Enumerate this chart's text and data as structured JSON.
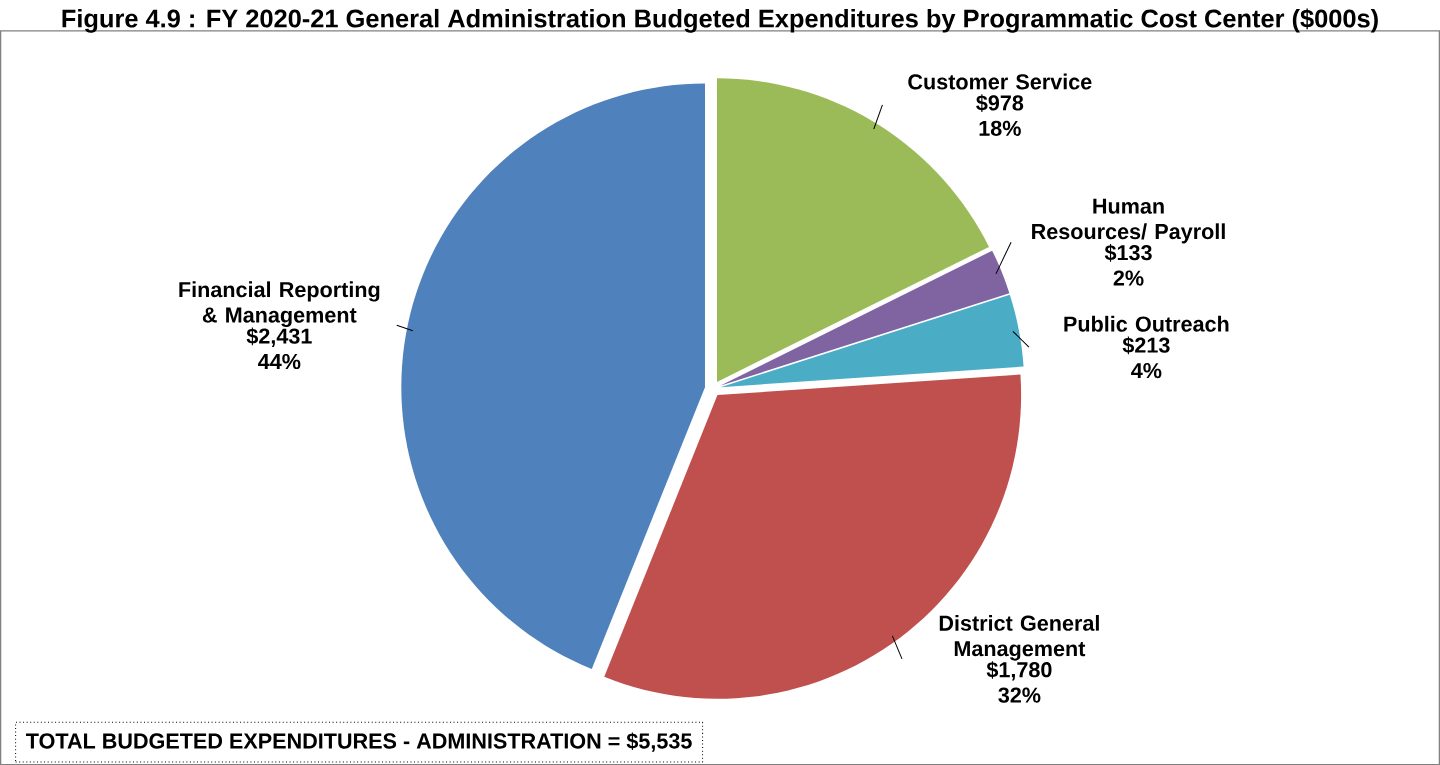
{
  "chart_data": {
    "type": "pie",
    "title": "Figure 4.9 : FY 2020-21 General Administration Budgeted Expenditures by Programmatic Cost Center ($000s)",
    "categories": [
      "Customer Service",
      "Human Resources/ Payroll",
      "Public Outreach",
      "District General Management",
      "Financial Reporting & Management"
    ],
    "values": [
      978,
      133,
      213,
      1780,
      2431
    ],
    "value_labels": [
      "$978 18%",
      "$133 2%",
      "$213 4%",
      "$1,780 32%",
      "$2,431 44%"
    ],
    "colors": [
      "#9bbb59",
      "#8064a2",
      "#4bacc6",
      "#c0504d",
      "#4f81bd"
    ],
    "legend": false,
    "annotations": [
      "TOTAL BUDGETED EXPENDITURES - ADMINISTRATION = $5,535"
    ]
  }
}
